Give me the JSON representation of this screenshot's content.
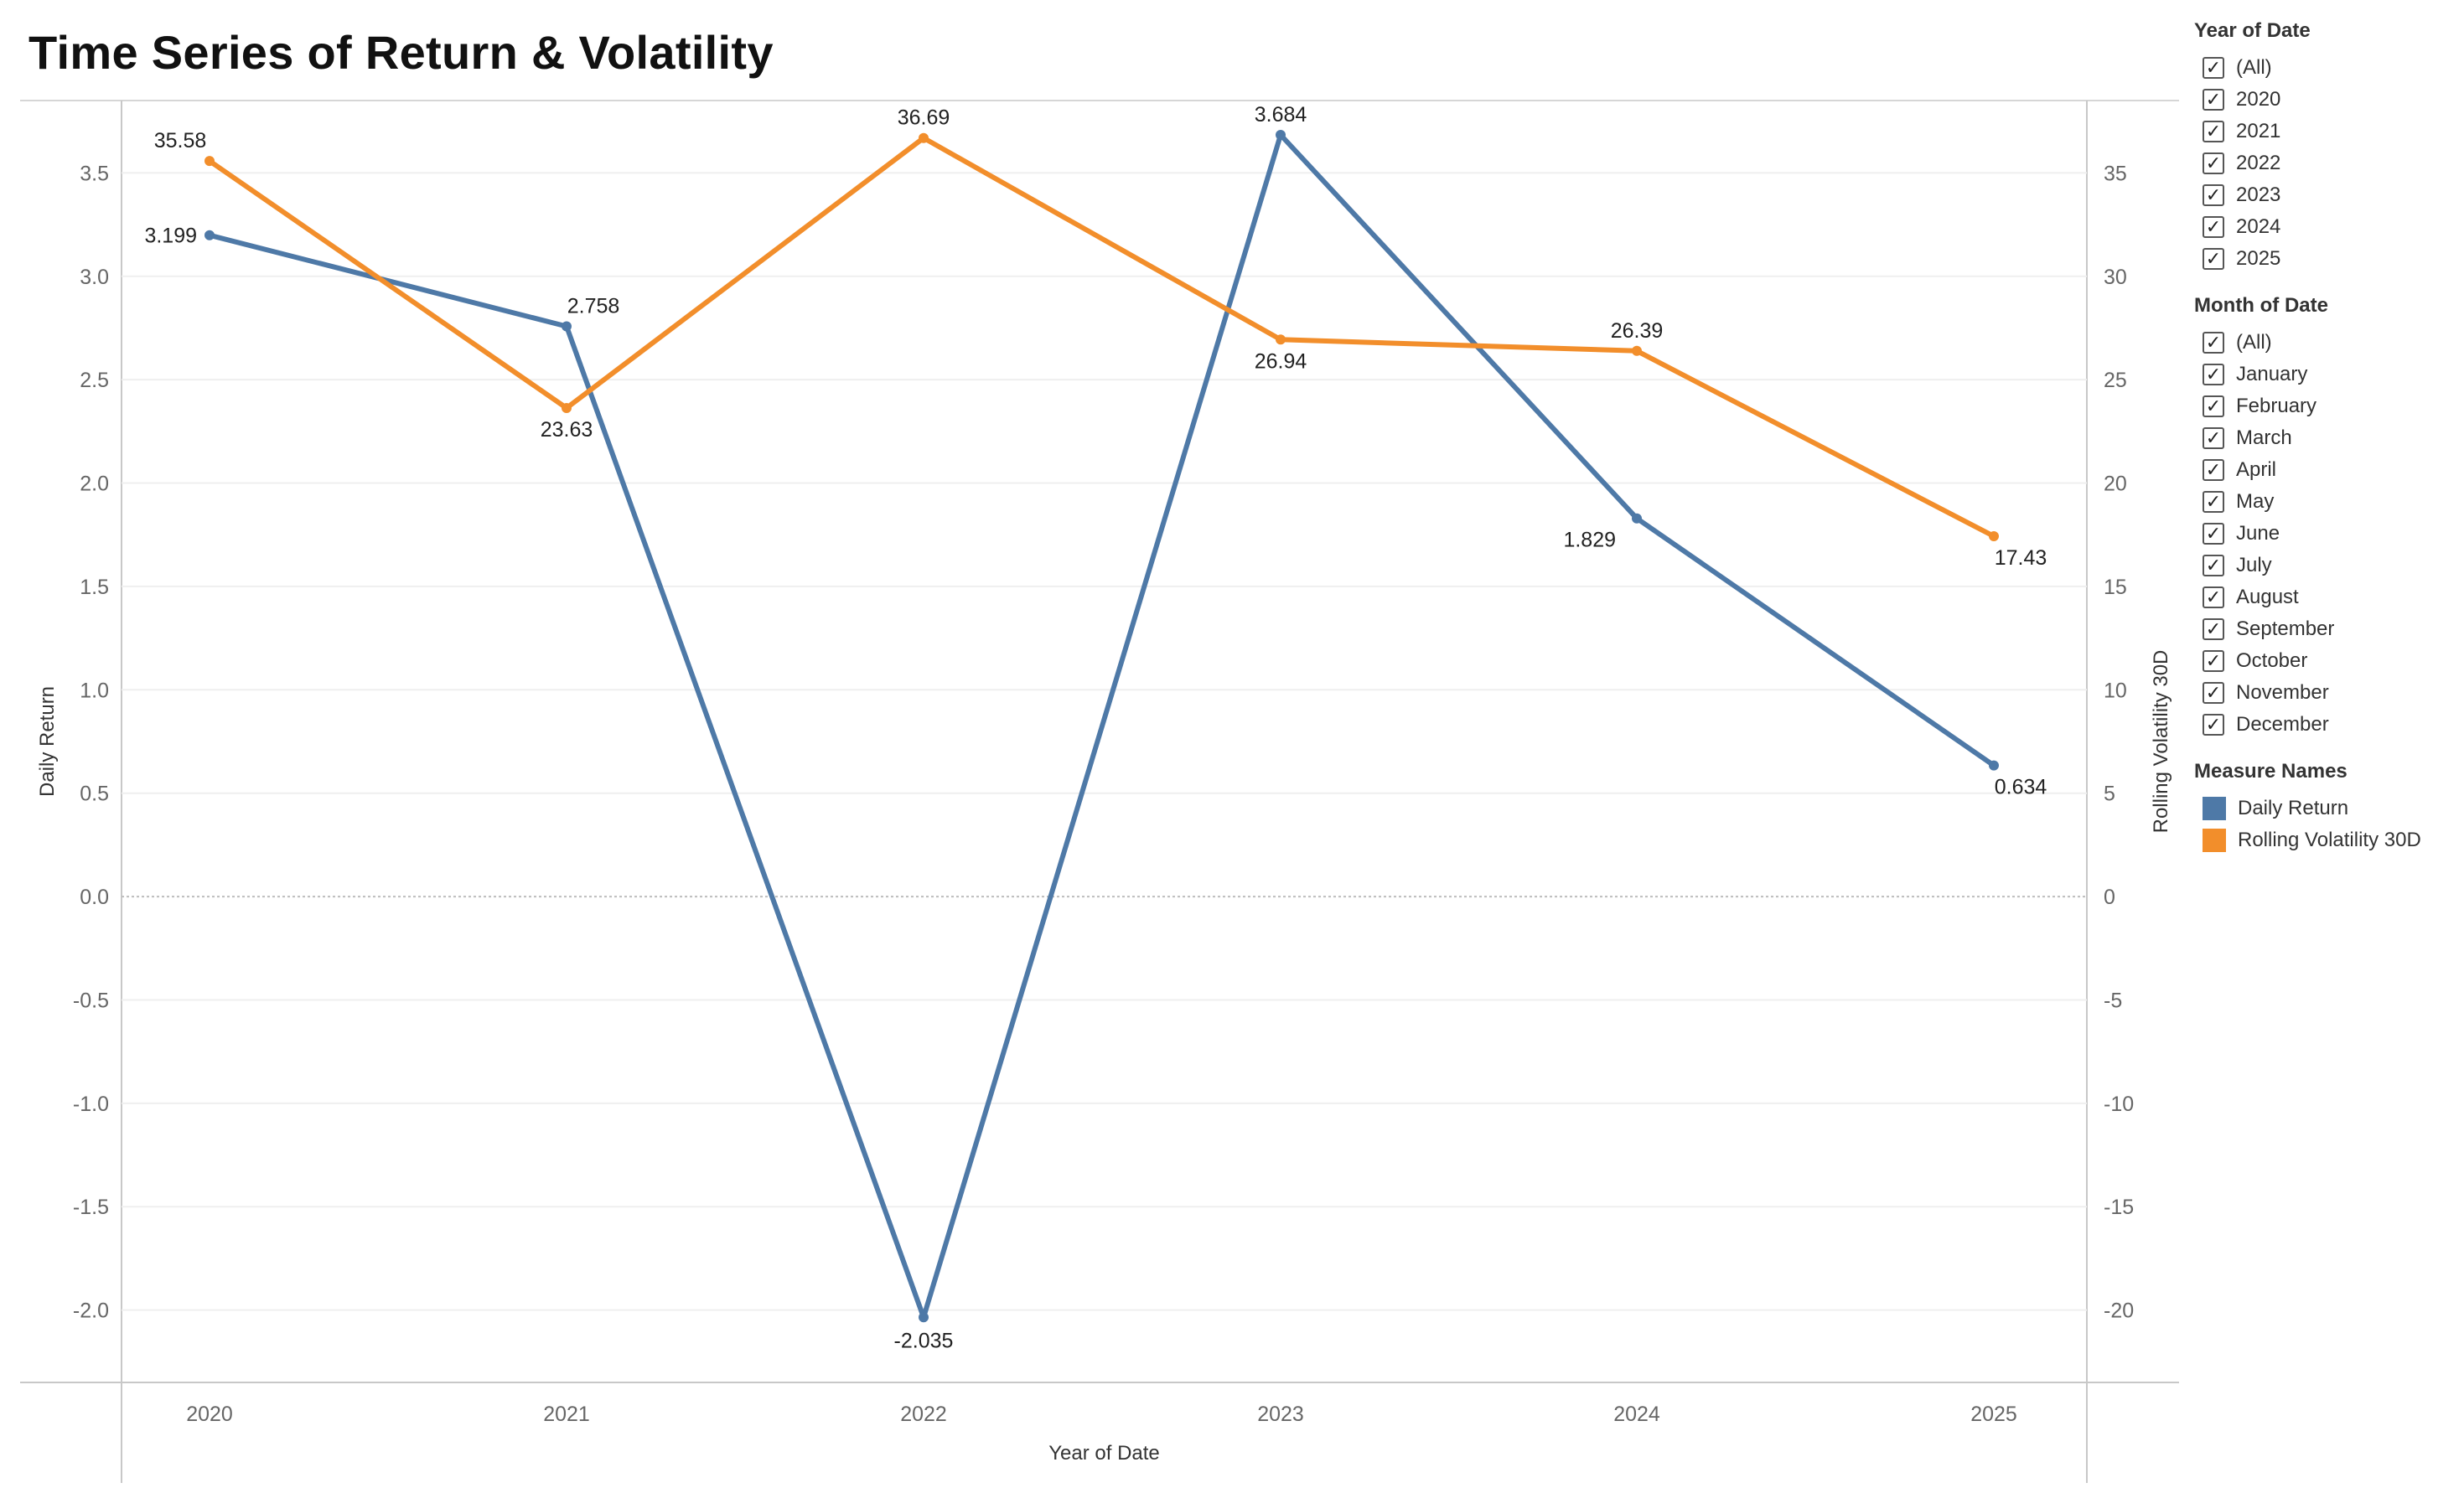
{
  "title": "Time Series of Return & Volatility",
  "chart_data": {
    "type": "line",
    "title": "Time Series of Return & Volatility",
    "xlabel": "Year of Date",
    "x": [
      "2020",
      "2021",
      "2022",
      "2023",
      "2024",
      "2025"
    ],
    "y_left": {
      "label": "Daily Return",
      "lim": [
        -2.35,
        3.85
      ],
      "ticks": [
        "3.5",
        "3.0",
        "2.5",
        "2.0",
        "1.5",
        "1.0",
        "0.5",
        "0.0",
        "-0.5",
        "-1.0",
        "-1.5",
        "-2.0"
      ]
    },
    "y_right": {
      "label": "Rolling Volatility 30D",
      "lim": [
        -23.5,
        38.5
      ],
      "ticks": [
        "35",
        "30",
        "25",
        "20",
        "15",
        "10",
        "5",
        "0",
        "-5",
        "-10",
        "-15",
        "-20"
      ]
    },
    "series": [
      {
        "name": "Daily Return",
        "axis": "left",
        "color": "#4e79a7",
        "values": [
          3.199,
          2.758,
          -2.035,
          3.684,
          1.829,
          0.634
        ],
        "labels": [
          "3.199",
          "2.758",
          "-2.035",
          "3.684",
          "1.829",
          "0.634"
        ]
      },
      {
        "name": "Rolling Volatility 30D",
        "axis": "right",
        "color": "#f28e2b",
        "values": [
          35.58,
          23.63,
          36.69,
          26.94,
          26.39,
          17.43
        ],
        "labels": [
          "35.58",
          "23.63",
          "36.69",
          "26.94",
          "26.39",
          "17.43"
        ]
      }
    ],
    "grid": true,
    "legend_position": "right"
  },
  "filters": {
    "year": {
      "title": "Year of Date",
      "items": [
        "(All)",
        "2020",
        "2021",
        "2022",
        "2023",
        "2024",
        "2025"
      ]
    },
    "month": {
      "title": "Month of Date",
      "items": [
        "(All)",
        "January",
        "February",
        "March",
        "April",
        "May",
        "June",
        "July",
        "August",
        "September",
        "October",
        "November",
        "December"
      ]
    }
  },
  "legend": {
    "title": "Measure Names",
    "items": [
      {
        "label": "Daily Return",
        "color": "#4e79a7"
      },
      {
        "label": "Rolling Volatility 30D",
        "color": "#f28e2b"
      }
    ]
  }
}
